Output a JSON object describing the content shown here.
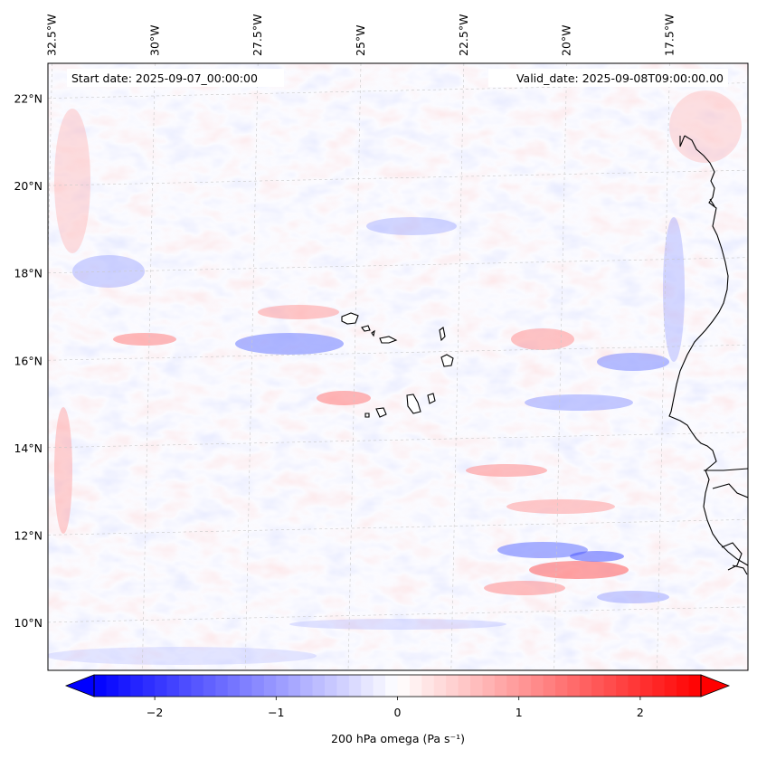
{
  "header": {
    "start_date": "Start date: 2025-09-07_00:00:00",
    "valid_date": "Valid_date: 2025-09-08T09:00:00.00"
  },
  "chart_data": {
    "type": "heatmap",
    "variable": "200 hPa omega",
    "units_label": "200 hPa omega (Pa s⁻¹)",
    "lon_ticks": [
      "32.5°W",
      "30°W",
      "27.5°W",
      "25°W",
      "22.5°W",
      "20°W",
      "17.5°W"
    ],
    "lat_ticks": [
      "22°N",
      "20°N",
      "18°N",
      "16°N",
      "14°N",
      "12°N",
      "10°N"
    ],
    "lon_values": [
      -32.5,
      -30,
      -27.5,
      -25,
      -22.5,
      -20,
      -17.5
    ],
    "lat_values": [
      22,
      20,
      18,
      16,
      14,
      12,
      10
    ],
    "lon_range": [
      -32.6,
      -15.6
    ],
    "lat_range": [
      8.9,
      22.8
    ],
    "colorbar": {
      "colormap": "bwr",
      "min": -2.5,
      "max": 2.5,
      "extend": "both",
      "ticks": [
        -2,
        -1,
        0,
        1,
        2
      ],
      "tick_labels": [
        "−2",
        "−1",
        "0",
        "1",
        "2"
      ],
      "colors": {
        "negative": "#0000ff",
        "zero": "#ffffff",
        "positive": "#ff0000"
      }
    },
    "gridlines": true,
    "coastlines": true
  }
}
